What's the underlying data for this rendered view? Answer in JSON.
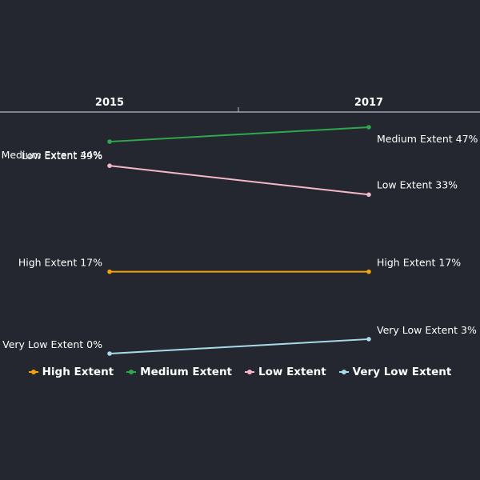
{
  "chart_data": {
    "type": "line",
    "title": "",
    "xlabel": "",
    "ylabel": "",
    "categories": [
      "2015",
      "2017"
    ],
    "ylim": [
      -1,
      55
    ],
    "grid": false,
    "legend_position": "bottom",
    "series": [
      {
        "name": "High Extent",
        "color": "#f0a30a",
        "values": [
          17,
          17
        ],
        "labels": [
          "High Extent 17%",
          "High Extent 17%"
        ]
      },
      {
        "name": "Medium Extent",
        "color": "#2ea84f",
        "values": [
          44,
          47
        ],
        "labels": [
          "Medium Extent 44%",
          "Medium Extent 47%"
        ]
      },
      {
        "name": "Low Extent",
        "color": "#f4b8c6",
        "values": [
          39,
          33
        ],
        "labels": [
          "Low Extent 39%",
          "Low Extent 33%"
        ]
      },
      {
        "name": "Very Low Extent",
        "color": "#a8dbea",
        "values": [
          0,
          3
        ],
        "labels": [
          "Very Low Extent 0%",
          "Very Low Extent 3%"
        ]
      }
    ]
  }
}
